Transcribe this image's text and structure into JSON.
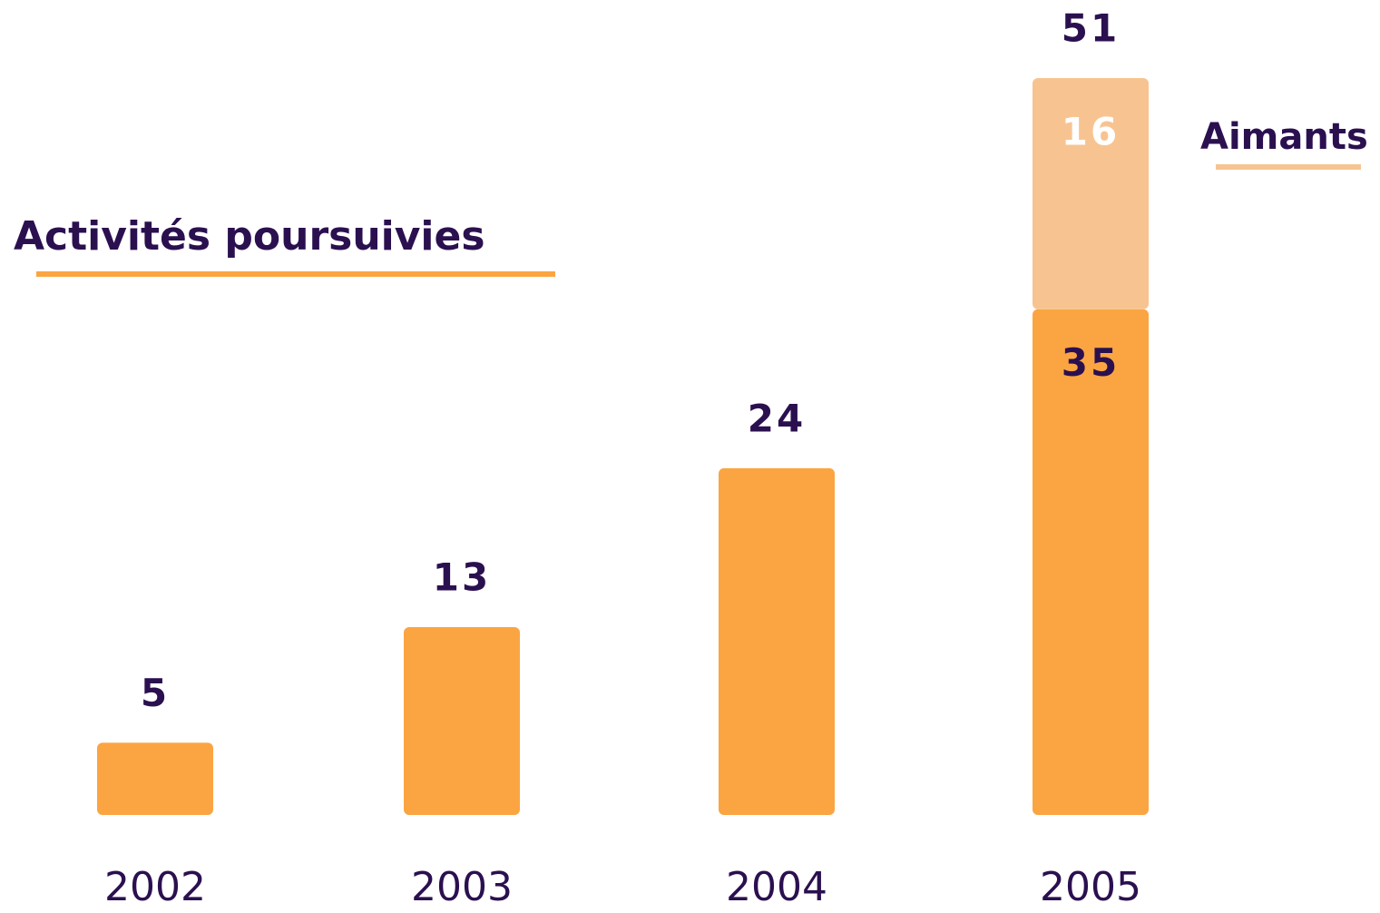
{
  "chart_data": {
    "type": "stacked_bar",
    "categories": [
      "2002",
      "2003",
      "2004",
      "2005"
    ],
    "series": [
      {
        "name": "Activités poursuivies",
        "color": "#fba542",
        "values": [
          5,
          13,
          24,
          35
        ]
      },
      {
        "name": "Aimants",
        "color": "#f7c491",
        "values": [
          null,
          null,
          null,
          16
        ]
      }
    ],
    "totals": [
      5,
      13,
      24,
      51
    ]
  }
}
